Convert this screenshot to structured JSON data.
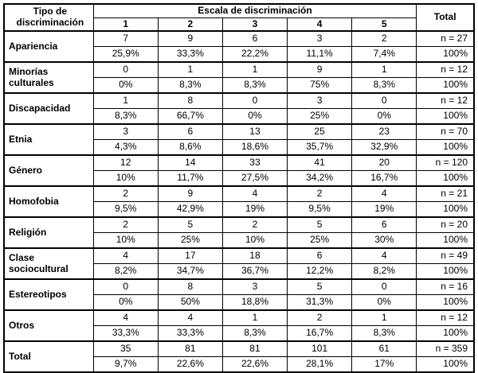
{
  "table": {
    "corner_header": "Tipo de discriminación",
    "scale_header": "Escala de discriminación",
    "scale_columns": [
      "1",
      "2",
      "3",
      "4",
      "5"
    ],
    "total_header": "Total",
    "rows": [
      {
        "label": "Apariencia",
        "counts": [
          "7",
          "9",
          "6",
          "3",
          "2"
        ],
        "total_count": "n = 27",
        "percents": [
          "25,9%",
          "33,3%",
          "22,2%",
          "11,1%",
          "7,4%"
        ],
        "total_percent": "100%"
      },
      {
        "label": "Minorías culturales",
        "counts": [
          "0",
          "1",
          "1",
          "9",
          "1"
        ],
        "total_count": "n = 12",
        "percents": [
          "0%",
          "8,3%",
          "8,3%",
          "75%",
          "8,3%"
        ],
        "total_percent": "100%"
      },
      {
        "label": "Discapacidad",
        "counts": [
          "1",
          "8",
          "0",
          "3",
          "0"
        ],
        "total_count": "n = 12",
        "percents": [
          "8,3%",
          "66,7%",
          "0%",
          "25%",
          "0%"
        ],
        "total_percent": "100%"
      },
      {
        "label": "Etnia",
        "counts": [
          "3",
          "6",
          "13",
          "25",
          "23"
        ],
        "total_count": "n = 70",
        "percents": [
          "4,3%",
          "8,6%",
          "18,6%",
          "35,7%",
          "32,9%"
        ],
        "total_percent": "100%"
      },
      {
        "label": "Género",
        "counts": [
          "12",
          "14",
          "33",
          "41",
          "20"
        ],
        "total_count": "n = 120",
        "percents": [
          "10%",
          "11,7%",
          "27,5%",
          "34,2%",
          "16,7%"
        ],
        "total_percent": "100%"
      },
      {
        "label": "Homofobia",
        "counts": [
          "2",
          "9",
          "4",
          "2",
          "4"
        ],
        "total_count": "n = 21",
        "percents": [
          "9,5%",
          "42,9%",
          "19%",
          "9,5%",
          "19%"
        ],
        "total_percent": "100%"
      },
      {
        "label": "Religión",
        "counts": [
          "2",
          "5",
          "2",
          "5",
          "6"
        ],
        "total_count": "n = 20",
        "percents": [
          "10%",
          "25%",
          "10%",
          "25%",
          "30%"
        ],
        "total_percent": "100%"
      },
      {
        "label": "Clase sociocultural",
        "counts": [
          "4",
          "17",
          "18",
          "6",
          "4"
        ],
        "total_count": "n = 49",
        "percents": [
          "8,2%",
          "34,7%",
          "36,7%",
          "12,2%",
          "8,2%"
        ],
        "total_percent": "100%"
      },
      {
        "label": "Estereotipos",
        "counts": [
          "0",
          "8",
          "3",
          "5",
          "0"
        ],
        "total_count": "n = 16",
        "percents": [
          "0%",
          "50%",
          "18,8%",
          "31,3%",
          "0%"
        ],
        "total_percent": "100%"
      },
      {
        "label": "Otros",
        "counts": [
          "4",
          "4",
          "1",
          "2",
          "1"
        ],
        "total_count": "n = 12",
        "percents": [
          "33,3%",
          "33,3%",
          "8,3%",
          "16,7%",
          "8,3%"
        ],
        "total_percent": "100%"
      },
      {
        "label": "Total",
        "counts": [
          "35",
          "81",
          "81",
          "101",
          "61"
        ],
        "total_count": "n = 359",
        "percents": [
          "9,7%",
          "22,6%",
          "22,6%",
          "28,1%",
          "17%"
        ],
        "total_percent": "100%"
      }
    ]
  },
  "colors": {
    "border": "#000000",
    "text": "#000000",
    "background": "#ffffff"
  },
  "chart_data": {
    "type": "table",
    "row_header": "Tipo de discriminación",
    "column_group_header": "Escala de discriminación",
    "scale_levels": [
      1,
      2,
      3,
      4,
      5
    ],
    "total_column_label": "Total",
    "rows": [
      {
        "category": "Apariencia",
        "counts": [
          7,
          9,
          6,
          3,
          2
        ],
        "row_percents": [
          25.9,
          33.3,
          22.2,
          11.1,
          7.4
        ],
        "n": 27
      },
      {
        "category": "Minorías culturales",
        "counts": [
          0,
          1,
          1,
          9,
          1
        ],
        "row_percents": [
          0,
          8.3,
          8.3,
          75,
          8.3
        ],
        "n": 12
      },
      {
        "category": "Discapacidad",
        "counts": [
          1,
          8,
          0,
          3,
          0
        ],
        "row_percents": [
          8.3,
          66.7,
          0,
          25,
          0
        ],
        "n": 12
      },
      {
        "category": "Etnia",
        "counts": [
          3,
          6,
          13,
          25,
          23
        ],
        "row_percents": [
          4.3,
          8.6,
          18.6,
          35.7,
          32.9
        ],
        "n": 70
      },
      {
        "category": "Género",
        "counts": [
          12,
          14,
          33,
          41,
          20
        ],
        "row_percents": [
          10,
          11.7,
          27.5,
          34.2,
          16.7
        ],
        "n": 120
      },
      {
        "category": "Homofobia",
        "counts": [
          2,
          9,
          4,
          2,
          4
        ],
        "row_percents": [
          9.5,
          42.9,
          19,
          9.5,
          19
        ],
        "n": 21
      },
      {
        "category": "Religión",
        "counts": [
          2,
          5,
          2,
          5,
          6
        ],
        "row_percents": [
          10,
          25,
          10,
          25,
          30
        ],
        "n": 20
      },
      {
        "category": "Clase sociocultural",
        "counts": [
          4,
          17,
          18,
          6,
          4
        ],
        "row_percents": [
          8.2,
          34.7,
          36.7,
          12.2,
          8.2
        ],
        "n": 49
      },
      {
        "category": "Estereotipos",
        "counts": [
          0,
          8,
          3,
          5,
          0
        ],
        "row_percents": [
          0,
          50,
          18.8,
          31.3,
          0
        ],
        "n": 16
      },
      {
        "category": "Otros",
        "counts": [
          4,
          4,
          1,
          2,
          1
        ],
        "row_percents": [
          33.3,
          33.3,
          8.3,
          16.7,
          8.3
        ],
        "n": 12
      },
      {
        "category": "Total",
        "counts": [
          35,
          81,
          81,
          101,
          61
        ],
        "row_percents": [
          9.7,
          22.6,
          22.6,
          28.1,
          17
        ],
        "n": 359
      }
    ]
  }
}
